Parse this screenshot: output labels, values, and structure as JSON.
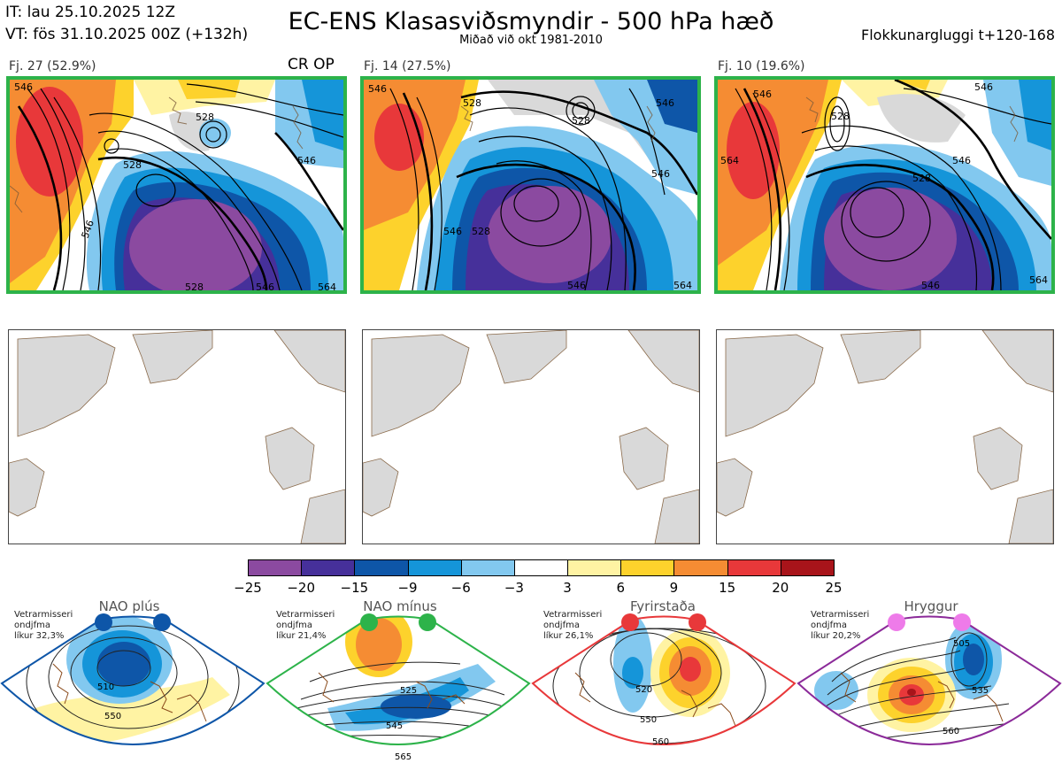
{
  "header": {
    "it_line": "IT: lau 25.10.2025 12Z",
    "vt_line": "VT: fös 31.10.2025 00Z  (+132h)",
    "title": "EC-ENS Klasasviðsmyndir - 500 hPa hæð",
    "subtitle": "Miðað við okt 1981-2010",
    "window_label": "Flokkunargluggi t+120-168"
  },
  "clusters": [
    {
      "label": "Fj. 27 (52.9%)",
      "tag": "CR OP",
      "contours": [
        "546",
        "528",
        "528",
        "546",
        "528",
        "546",
        "546",
        "564"
      ]
    },
    {
      "label": "Fj. 14 (27.5%)",
      "tag": "",
      "contours": [
        "546",
        "528",
        "528",
        "546",
        "528",
        "546",
        "546",
        "546",
        "564"
      ]
    },
    {
      "label": "Fj. 10 (19.6%)",
      "tag": "",
      "contours": [
        "546",
        "528",
        "546",
        "546",
        "564",
        "528",
        "546",
        "564"
      ]
    }
  ],
  "colorbar": {
    "ticks": [
      "−25",
      "−20",
      "−15",
      "−9",
      "−6",
      "−3",
      "3",
      "6",
      "9",
      "15",
      "20",
      "25"
    ],
    "colors": [
      "#8b4aa0",
      "#46309a",
      "#0e56a8",
      "#1595d9",
      "#82c8ef",
      "#ffffff",
      "#fff3a3",
      "#fdd22c",
      "#f58c33",
      "#e8383a",
      "#a8141a"
    ]
  },
  "regimes": [
    {
      "name": "NAO plús",
      "note": [
        "Vetrarmisseri",
        "ondjfma",
        "líkur 32,3%"
      ],
      "dot_color": "#0e56a8",
      "frame_color": "#0e56a8",
      "labels": [
        "510",
        "550"
      ]
    },
    {
      "name": "NAO mínus",
      "note": [
        "Vetrarmisseri",
        "ondjfma",
        "líkur 21,4%"
      ],
      "dot_color": "#2db34a",
      "frame_color": "#2db34a",
      "labels": [
        "525",
        "545",
        "565"
      ]
    },
    {
      "name": "Fyrirstaða",
      "note": [
        "Vetrarmisseri",
        "ondjfma",
        "líkur 26,1%"
      ],
      "dot_color": "#e8383a",
      "frame_color": "#e8383a",
      "labels": [
        "520",
        "550",
        "560"
      ]
    },
    {
      "name": "Hryggur",
      "note": [
        "Vetrarmisseri",
        "ondjfma",
        "líkur 20,2%"
      ],
      "dot_color": "#ee7be9",
      "frame_color": "#8b2a99",
      "labels": [
        "505",
        "535",
        "560"
      ]
    }
  ]
}
